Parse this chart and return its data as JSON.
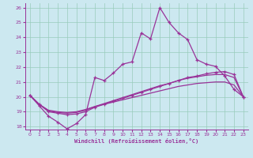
{
  "xlabel": "Windchill (Refroidissement éolien,°C)",
  "bg_color": "#cce8f0",
  "grid_color": "#99ccbb",
  "line_color": "#993399",
  "xlim": [
    -0.5,
    23.5
  ],
  "ylim": [
    17.8,
    26.3
  ],
  "yticks": [
    18,
    19,
    20,
    21,
    22,
    23,
    24,
    25,
    26
  ],
  "xticks": [
    0,
    1,
    2,
    3,
    4,
    5,
    6,
    7,
    8,
    9,
    10,
    11,
    12,
    13,
    14,
    15,
    16,
    17,
    18,
    19,
    20,
    21,
    22,
    23
  ],
  "s1_x": [
    0,
    1,
    2,
    3,
    4,
    5,
    6,
    7,
    8,
    9,
    10,
    11,
    12,
    13,
    14,
    15,
    16,
    17,
    18,
    19,
    20,
    21,
    22,
    23
  ],
  "s1_y": [
    20.1,
    19.4,
    18.7,
    18.3,
    17.85,
    18.2,
    18.8,
    21.3,
    21.1,
    21.6,
    22.2,
    22.35,
    24.3,
    23.9,
    26.0,
    25.0,
    24.3,
    23.85,
    22.5,
    22.2,
    22.05,
    21.4,
    20.5,
    20.0
  ],
  "s2_x": [
    0,
    1,
    2,
    3,
    4,
    5,
    6,
    7,
    8,
    9,
    10,
    11,
    12,
    13,
    14,
    15,
    16,
    17,
    18,
    19,
    20,
    21,
    22,
    23
  ],
  "s2_y": [
    20.1,
    19.5,
    19.0,
    18.9,
    18.8,
    18.85,
    19.0,
    19.3,
    19.5,
    19.7,
    19.9,
    20.1,
    20.3,
    20.5,
    20.7,
    20.9,
    21.1,
    21.3,
    21.4,
    21.55,
    21.65,
    21.7,
    21.5,
    20.0
  ],
  "s3_x": [
    0,
    1,
    2,
    3,
    4,
    5,
    6,
    7,
    8,
    9,
    10,
    11,
    12,
    13,
    14,
    15,
    16,
    17,
    18,
    19,
    20,
    21,
    22,
    23
  ],
  "s3_y": [
    20.1,
    19.5,
    19.05,
    18.95,
    18.9,
    18.95,
    19.1,
    19.35,
    19.55,
    19.75,
    19.95,
    20.15,
    20.35,
    20.55,
    20.75,
    20.9,
    21.1,
    21.25,
    21.35,
    21.45,
    21.5,
    21.5,
    21.3,
    20.0
  ],
  "s4_x": [
    0,
    1,
    2,
    3,
    4,
    5,
    6,
    7,
    8,
    9,
    10,
    11,
    12,
    13,
    14,
    15,
    16,
    17,
    18,
    19,
    20,
    21,
    22,
    23
  ],
  "s4_y": [
    20.1,
    19.5,
    19.1,
    19.0,
    18.95,
    19.0,
    19.15,
    19.35,
    19.5,
    19.65,
    19.8,
    19.95,
    20.1,
    20.25,
    20.4,
    20.55,
    20.7,
    20.8,
    20.9,
    20.95,
    21.0,
    21.0,
    20.8,
    20.0
  ]
}
